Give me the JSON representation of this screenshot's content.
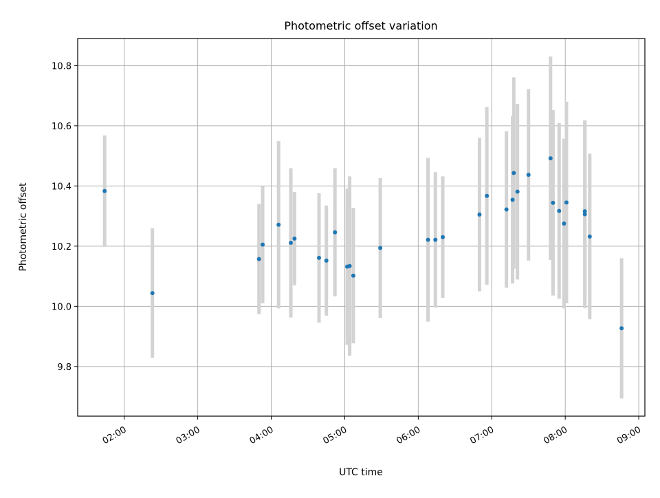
{
  "chart_data": {
    "type": "scatter",
    "title": "Photometric offset variation",
    "xlabel": "UTC time",
    "ylabel": "Photometric offset",
    "x_range": [
      "01:22",
      "09:05"
    ],
    "ylim": [
      9.635,
      10.89
    ],
    "grid": true,
    "x_ticks": [
      "02:00",
      "03:00",
      "04:00",
      "05:00",
      "06:00",
      "07:00",
      "08:00",
      "09:00"
    ],
    "y_ticks": [
      9.8,
      10.0,
      10.2,
      10.4,
      10.6,
      10.8
    ],
    "y_tick_labels": [
      "9.8",
      "10.0",
      "10.2",
      "10.4",
      "10.6",
      "10.8"
    ],
    "colors": {
      "point": "#1f77b4",
      "errorbar": "#d3d3d3",
      "grid": "#b0b0b0"
    },
    "points": [
      {
        "x": "01:44",
        "y": 10.383,
        "err": 0.185
      },
      {
        "x": "02:23",
        "y": 10.044,
        "err": 0.215
      },
      {
        "x": "03:50",
        "y": 10.157,
        "err": 0.183
      },
      {
        "x": "03:53",
        "y": 10.205,
        "err": 0.195
      },
      {
        "x": "04:06",
        "y": 10.271,
        "err": 0.278
      },
      {
        "x": "04:16",
        "y": 10.211,
        "err": 0.248
      },
      {
        "x": "04:19",
        "y": 10.225,
        "err": 0.155
      },
      {
        "x": "04:39",
        "y": 10.161,
        "err": 0.215
      },
      {
        "x": "04:45",
        "y": 10.152,
        "err": 0.183
      },
      {
        "x": "04:52",
        "y": 10.246,
        "err": 0.213
      },
      {
        "x": "05:02",
        "y": 10.132,
        "err": 0.26
      },
      {
        "x": "05:04",
        "y": 10.134,
        "err": 0.298
      },
      {
        "x": "05:07",
        "y": 10.102,
        "err": 0.225
      },
      {
        "x": "05:29",
        "y": 10.194,
        "err": 0.232
      },
      {
        "x": "06:08",
        "y": 10.221,
        "err": 0.272
      },
      {
        "x": "06:14",
        "y": 10.221,
        "err": 0.225
      },
      {
        "x": "06:20",
        "y": 10.23,
        "err": 0.202
      },
      {
        "x": "06:50",
        "y": 10.305,
        "err": 0.255
      },
      {
        "x": "06:56",
        "y": 10.367,
        "err": 0.295
      },
      {
        "x": "07:12",
        "y": 10.322,
        "err": 0.26
      },
      {
        "x": "07:17",
        "y": 10.354,
        "err": 0.278
      },
      {
        "x": "07:18",
        "y": 10.443,
        "err": 0.318
      },
      {
        "x": "07:21",
        "y": 10.381,
        "err": 0.292
      },
      {
        "x": "07:30",
        "y": 10.437,
        "err": 0.285
      },
      {
        "x": "07:48",
        "y": 10.492,
        "err": 0.338
      },
      {
        "x": "07:50",
        "y": 10.344,
        "err": 0.308
      },
      {
        "x": "07:55",
        "y": 10.317,
        "err": 0.292
      },
      {
        "x": "07:59",
        "y": 10.275,
        "err": 0.282
      },
      {
        "x": "08:01",
        "y": 10.345,
        "err": 0.335
      },
      {
        "x": "08:16",
        "y": 10.306,
        "err": 0.312
      },
      {
        "x": "08:16",
        "y": 10.316,
        "err": 0.3
      },
      {
        "x": "08:20",
        "y": 10.232,
        "err": 0.275
      },
      {
        "x": "08:46",
        "y": 9.927,
        "err": 0.233
      }
    ]
  }
}
